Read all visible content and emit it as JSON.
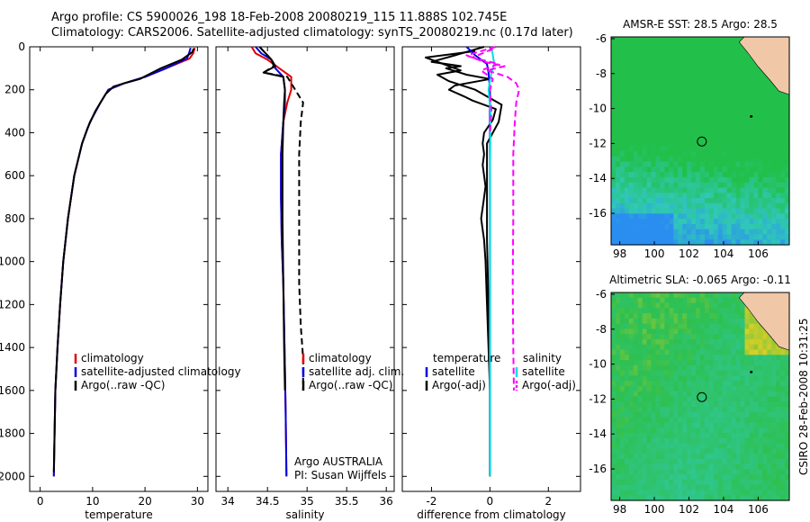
{
  "title_line1": "Argo profile: CS 5900026_198 18-Feb-2008 20080219_115 11.888S 102.745E",
  "title_line2": "Climatology: CARS2006. Satellite-adjusted climatology: synTS_20080219.nc (0.17d later)",
  "stamp": "CSIRO 28-Feb-2008 10:31:25",
  "colors": {
    "clim": "#e00000",
    "sat": "#0000e0",
    "argo": "#000000",
    "raw": "#ff00ff",
    "cyan": "#00e0e0"
  },
  "chart_data": [
    {
      "type": "line",
      "id": "temp",
      "xlabel": "temperature",
      "ylabel": "",
      "xlim": [
        -2,
        32
      ],
      "ylim": [
        2070,
        0
      ],
      "y_reversed": true,
      "xticks": [
        0,
        10,
        20,
        30
      ],
      "xtick_labels": [
        "0",
        "10",
        "20",
        "30"
      ],
      "yticks": [
        0,
        200,
        400,
        600,
        800,
        1000,
        1200,
        1400,
        1600,
        1800,
        2000
      ],
      "ytick_labels": [
        "0",
        "200",
        "400",
        "600",
        "800",
        "1000",
        "1200",
        "1400",
        "1600",
        "1800",
        "2000"
      ],
      "legend_placement": "lower-right",
      "legend": [
        "climatology",
        "satellite-adjusted climatology",
        "Argo(..raw -QC)"
      ],
      "series": [
        {
          "name": "climatology",
          "color_key": "clim",
          "dash": false,
          "x": [
            29.5,
            29.2,
            28.5,
            24,
            20,
            16,
            13,
            11.5,
            9.5,
            8,
            6.5,
            5.3,
            4.4,
            3.8,
            3.3,
            2.9,
            2.6
          ],
          "y": [
            5,
            30,
            55,
            100,
            140,
            170,
            200,
            260,
            350,
            450,
            600,
            800,
            1000,
            1200,
            1400,
            1600,
            2000
          ]
        },
        {
          "name": "satellite-adjusted climatology",
          "color_key": "sat",
          "dash": false,
          "x": [
            28.7,
            28.4,
            28,
            24,
            20,
            16,
            13,
            11.5,
            9.5,
            8,
            6.5,
            5.3,
            4.4,
            3.8,
            3.3,
            2.9,
            2.6
          ],
          "y": [
            5,
            30,
            55,
            100,
            140,
            170,
            200,
            260,
            350,
            450,
            600,
            800,
            1000,
            1200,
            1400,
            1600,
            2000
          ]
        },
        {
          "name": "Argo(..raw -QC)",
          "color_key": "argo",
          "dash": false,
          "x": [
            29.3,
            29,
            27,
            23,
            19,
            16,
            14,
            12.5,
            10.5,
            9,
            8,
            6.5,
            5.3,
            4.4,
            3.8,
            3.3,
            2.9,
            2.6
          ],
          "y": [
            8,
            25,
            60,
            100,
            150,
            170,
            185,
            220,
            300,
            380,
            450,
            600,
            800,
            1000,
            1200,
            1400,
            1600,
            1980
          ]
        }
      ]
    },
    {
      "type": "line",
      "id": "sal",
      "xlabel": "salinity",
      "xlim": [
        33.85,
        36.1
      ],
      "ylim": [
        2070,
        0
      ],
      "y_reversed": true,
      "xticks": [
        34,
        34.5,
        35,
        35.5,
        36
      ],
      "xtick_labels": [
        "34",
        "34.5",
        "35",
        "35.5",
        "36"
      ],
      "legend_placement": "lower-right",
      "legend": [
        "climatology",
        "satellite adj. clim.",
        "Argo(..raw -QC)"
      ],
      "annotation": [
        "Argo AUSTRALIA",
        "PI: Susan Wijffels"
      ],
      "series": [
        {
          "name": "climatology",
          "color_key": "clim",
          "dash": false,
          "x": [
            34.3,
            34.35,
            34.5,
            34.65,
            34.8,
            34.8,
            34.75,
            34.7,
            34.67,
            34.67,
            34.68,
            34.7,
            34.71,
            34.72,
            34.73,
            34.74
          ],
          "y": [
            0,
            30,
            60,
            100,
            140,
            200,
            260,
            350,
            500,
            700,
            900,
            1100,
            1300,
            1500,
            1700,
            2000
          ]
        },
        {
          "name": "satellite adj. clim.",
          "color_key": "sat",
          "dash": false,
          "x": [
            34.35,
            34.42,
            34.55,
            34.6,
            34.7,
            34.72,
            34.72,
            34.7,
            34.67,
            34.67,
            34.68,
            34.7,
            34.71,
            34.72,
            34.73,
            34.74
          ],
          "y": [
            0,
            30,
            60,
            100,
            140,
            200,
            260,
            350,
            500,
            700,
            900,
            1100,
            1300,
            1500,
            1700,
            2000
          ]
        },
        {
          "name": "Argo(..raw -QC)",
          "color_key": "argo",
          "dash": true,
          "x": [
            34.4,
            34.55,
            34.58,
            34.45,
            34.75,
            34.85,
            34.95,
            34.92,
            34.9,
            34.9,
            34.9,
            34.9,
            34.92,
            34.95,
            34.95
          ],
          "y": [
            0,
            60,
            90,
            120,
            140,
            200,
            260,
            350,
            500,
            700,
            900,
            1100,
            1300,
            1450,
            1600
          ]
        },
        {
          "name": "Argo raw",
          "color_key": "argo",
          "dash": false,
          "x": [
            34.4,
            34.55,
            34.6,
            34.45,
            34.7,
            34.72,
            34.71,
            34.7,
            34.69,
            34.69,
            34.7,
            34.71,
            34.72
          ],
          "y": [
            0,
            60,
            90,
            120,
            140,
            200,
            260,
            350,
            500,
            800,
            1100,
            1400,
            1600
          ]
        }
      ]
    },
    {
      "type": "line",
      "id": "diff",
      "xlabel": "difference from climatology",
      "xlim": [
        -3,
        3.1
      ],
      "ylim": [
        2070,
        0
      ],
      "y_reversed": true,
      "xticks": [
        -2,
        0,
        2
      ],
      "xtick_labels": [
        "-2",
        "0",
        "2"
      ],
      "legend_placement": "lower-center",
      "legend_left": [
        "temperature",
        "satellite",
        "Argo(-adj)"
      ],
      "legend_right": [
        "salinity",
        "satellite",
        "Argo(-adj)"
      ],
      "series": [
        {
          "name": "temperature Argo(-adj)",
          "color_key": "argo",
          "dash": false,
          "x": [
            -0.2,
            -1.2,
            -2.0,
            -1.0,
            -1.5,
            -0.8,
            0.0,
            -1.2,
            -1.4,
            -0.9,
            -0.6,
            0.2,
            0.1,
            -0.2,
            -0.25,
            -0.2,
            -0.25,
            -0.2,
            -0.15,
            -0.2,
            -0.3,
            -0.2,
            -0.15,
            -0.1,
            -0.05,
            0,
            0
          ],
          "y": [
            0,
            40,
            70,
            90,
            100,
            130,
            150,
            180,
            200,
            230,
            250,
            290,
            340,
            400,
            450,
            500,
            550,
            600,
            650,
            700,
            800,
            900,
            1000,
            1200,
            1400,
            1600,
            2000
          ]
        },
        {
          "name": "temperature Argo raw",
          "color_key": "argo",
          "dash": false,
          "x": [
            -0.5,
            -2.2,
            -1.6,
            -1.0,
            -1.8,
            -1.4,
            -0.5,
            0.4,
            0.3,
            -0.1,
            -0.1,
            -0.1,
            -0.05,
            0,
            0
          ],
          "y": [
            20,
            50,
            80,
            110,
            130,
            160,
            200,
            270,
            350,
            450,
            600,
            900,
            1200,
            1500,
            2000
          ]
        },
        {
          "name": "temperature satellite",
          "color_key": "sat",
          "dash": false,
          "x": [
            -0.8,
            -0.5,
            -0.1,
            -0.05,
            0,
            0,
            0
          ],
          "y": [
            0,
            40,
            80,
            120,
            200,
            600,
            2000
          ]
        },
        {
          "name": "salinity satellite",
          "color_key": "cyan",
          "dash": false,
          "x": [
            0.05,
            0.1,
            0.15,
            0.05,
            -0.05,
            0.02,
            0,
            0
          ],
          "y": [
            0,
            40,
            80,
            120,
            200,
            300,
            600,
            2000
          ]
        },
        {
          "name": "salinity Argo(-adj)",
          "color_key": "raw",
          "dash": true,
          "x": [
            0.2,
            -0.8,
            -0.2,
            0.5,
            -0.1,
            0.6,
            0.9,
            1.0,
            0.9,
            0.85,
            0.8,
            0.8,
            0.78,
            0.8,
            0.82
          ],
          "y": [
            0,
            40,
            70,
            90,
            110,
            140,
            170,
            200,
            260,
            350,
            500,
            800,
            1100,
            1400,
            1600
          ]
        },
        {
          "name": "salinity Argo raw",
          "color_key": "raw",
          "dash": true,
          "x": [
            0.1,
            -0.6,
            0.3,
            -0.3,
            0.1,
            0.0,
            0.05,
            0.0
          ],
          "y": [
            10,
            50,
            80,
            110,
            150,
            200,
            300,
            400
          ]
        }
      ]
    },
    {
      "type": "heatmap",
      "id": "sst",
      "title": "AMSR-E SST: 28.5 Argo: 28.5",
      "xlim": [
        97.5,
        107.8
      ],
      "ylim": [
        -17.8,
        -5.9
      ],
      "xticks": [
        98,
        100,
        102,
        104,
        106
      ],
      "xtick_labels": [
        "98",
        "100",
        "102",
        "104",
        "106"
      ],
      "yticks": [
        -6,
        -8,
        -10,
        -12,
        -14,
        -16
      ],
      "ytick_labels": [
        "-6",
        "-8",
        "-10",
        "-12",
        "-14",
        "-16"
      ],
      "profile_location": {
        "lon": 102.745,
        "lat": -11.888
      },
      "land_color": "#f0c8a8"
    },
    {
      "type": "heatmap",
      "id": "sla",
      "title": "Altimetric SLA: -0.065 Argo: -0.11",
      "xlim": [
        97.5,
        107.8
      ],
      "ylim": [
        -17.8,
        -5.9
      ],
      "xticks": [
        98,
        100,
        102,
        104,
        106
      ],
      "xtick_labels": [
        "98",
        "100",
        "102",
        "104",
        "106"
      ],
      "yticks": [
        -6,
        -8,
        -10,
        -12,
        -14,
        -16
      ],
      "ytick_labels": [
        "-6",
        "-8",
        "-10",
        "-12",
        "-14",
        "-16"
      ],
      "profile_location": {
        "lon": 102.745,
        "lat": -11.888
      },
      "land_color": "#f0c8a8"
    }
  ]
}
